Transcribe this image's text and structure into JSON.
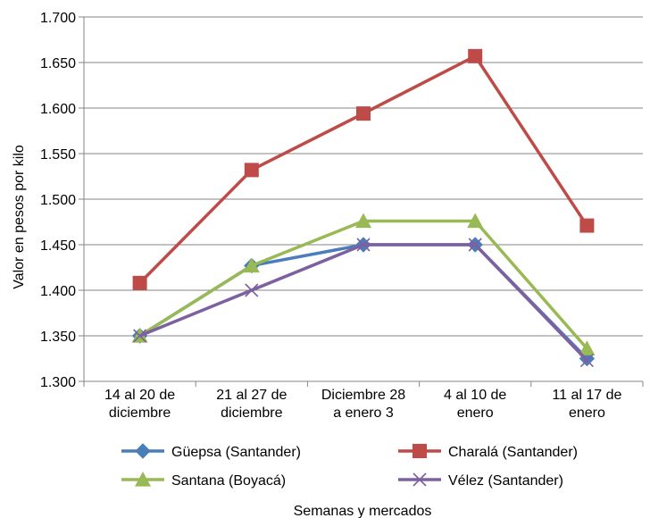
{
  "chart_data": {
    "type": "line",
    "title": "",
    "xlabel": "Semanas y mercados",
    "ylabel": "Valor en pesos por kilo",
    "ylim": [
      1300,
      1700
    ],
    "ytick_step": 50,
    "ytick_labels": [
      "1.300",
      "1.350",
      "1.400",
      "1.450",
      "1.500",
      "1.550",
      "1.600",
      "1.650",
      "1.700"
    ],
    "grid": "horizontal",
    "legend_position": "bottom",
    "categories": [
      [
        "14 al 20 de",
        "diciembre"
      ],
      [
        "21 al 27 de",
        "diciembre"
      ],
      [
        "Diciembre 28",
        "a enero 3"
      ],
      [
        "4 al 10 de",
        "enero"
      ],
      [
        "11 al 17 de",
        "enero"
      ]
    ],
    "series": [
      {
        "name": "Güepsa (Santander)",
        "color": "#4a7ebb",
        "marker": "diamond",
        "values": [
          1350,
          1427,
          1450,
          1450,
          1325
        ]
      },
      {
        "name": "Charalá (Santander)",
        "color": "#be4b48",
        "marker": "square",
        "values": [
          1408,
          1532,
          1594,
          1657,
          1471
        ]
      },
      {
        "name": "Santana (Boyacá)",
        "color": "#98b954",
        "marker": "triangle",
        "values": [
          1350,
          1427,
          1476,
          1476,
          1336
        ]
      },
      {
        "name": "Vélez (Santander)",
        "color": "#7d60a0",
        "marker": "x",
        "values": [
          1350,
          1400,
          1450,
          1450,
          1323
        ]
      }
    ]
  }
}
